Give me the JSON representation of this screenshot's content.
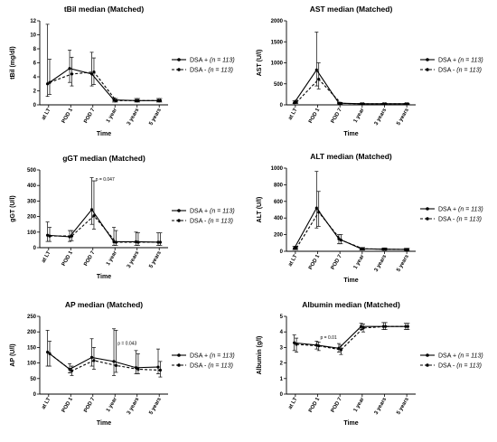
{
  "legend": {
    "pos": {
      "label": "DSA +",
      "n": "(n = 113)"
    },
    "neg": {
      "label": "DSA  -",
      "n": "(n = 113)"
    }
  },
  "chart_data": [
    {
      "type": "line",
      "title": "tBil median (Matched)",
      "ylabel": "tBil  (mg/dl)",
      "xlabel": "Time",
      "categories": [
        "at LT",
        "POD 1",
        "POD 7",
        "1 year",
        "3 years",
        "5 years"
      ],
      "ylim": [
        0,
        12
      ],
      "yticks": [
        0,
        2,
        4,
        6,
        8,
        10,
        12
      ],
      "series": [
        {
          "name": "DSA +",
          "style": "solid",
          "values": [
            3.0,
            5.2,
            4.4,
            0.7,
            0.6,
            0.6
          ],
          "err_low": [
            1.2,
            3.2,
            2.7,
            0.4,
            0.4,
            0.4
          ],
          "err_high": [
            11.5,
            7.8,
            7.5,
            1.0,
            0.9,
            0.9
          ]
        },
        {
          "name": "DSA -",
          "style": "dashed",
          "values": [
            3.2,
            4.4,
            4.7,
            0.6,
            0.6,
            0.6
          ],
          "err_low": [
            1.5,
            2.7,
            2.9,
            0.4,
            0.4,
            0.4
          ],
          "err_high": [
            6.5,
            6.8,
            6.7,
            0.9,
            0.9,
            0.9
          ]
        }
      ],
      "annotations": []
    },
    {
      "type": "line",
      "title": "AST median (Matched)",
      "ylabel": "AST (U/l)",
      "xlabel": "Time",
      "categories": [
        "at LT",
        "POD 1",
        "POD 7",
        "1 year",
        "3 years",
        "5 years"
      ],
      "ylim": [
        0,
        2000
      ],
      "yticks": [
        0,
        500,
        1000,
        1500,
        2000
      ],
      "series": [
        {
          "name": "DSA +",
          "style": "solid",
          "values": [
            50,
            830,
            40,
            25,
            25,
            25
          ],
          "err_low": [
            30,
            450,
            25,
            18,
            18,
            18
          ],
          "err_high": [
            100,
            1730,
            60,
            35,
            35,
            35
          ]
        },
        {
          "name": "DSA -",
          "style": "dashed",
          "values": [
            60,
            610,
            35,
            25,
            25,
            25
          ],
          "err_low": [
            35,
            380,
            22,
            18,
            18,
            18
          ],
          "err_high": [
            110,
            1000,
            55,
            35,
            35,
            35
          ]
        }
      ],
      "annotations": []
    },
    {
      "type": "line",
      "title": "gGT median (Matched)",
      "ylabel": "gGT (U/l)",
      "xlabel": "Time",
      "categories": [
        "at LT",
        "POD 1",
        "POD 7",
        "1 year",
        "3 years",
        "5 years"
      ],
      "ylim": [
        0,
        500
      ],
      "yticks": [
        0,
        100,
        200,
        300,
        400,
        500
      ],
      "series": [
        {
          "name": "DSA +",
          "style": "solid",
          "values": [
            80,
            70,
            245,
            38,
            38,
            35
          ],
          "err_low": [
            40,
            40,
            150,
            15,
            15,
            15
          ],
          "err_high": [
            165,
            110,
            450,
            130,
            100,
            95
          ]
        },
        {
          "name": "DSA -",
          "style": "dashed",
          "values": [
            75,
            75,
            205,
            35,
            35,
            35
          ],
          "err_low": [
            40,
            45,
            120,
            15,
            15,
            15
          ],
          "err_high": [
            130,
            110,
            430,
            110,
            95,
            95
          ]
        }
      ],
      "annotations": [
        {
          "text": "p = 0.047",
          "x": "POD 7",
          "y": 430
        }
      ]
    },
    {
      "type": "line",
      "title": "ALT median (Matched)",
      "ylabel": "ALT (U/l)",
      "xlabel": "Time",
      "categories": [
        "at LT",
        "POD 1",
        "POD 7",
        "1 year",
        "3 years",
        "5 years"
      ],
      "ylim": [
        0,
        1000
      ],
      "yticks": [
        0,
        200,
        400,
        600,
        800,
        1000
      ],
      "series": [
        {
          "name": "DSA +",
          "style": "solid",
          "values": [
            35,
            520,
            150,
            30,
            25,
            22
          ],
          "err_low": [
            20,
            280,
            90,
            15,
            15,
            12
          ],
          "err_high": [
            60,
            960,
            200,
            45,
            40,
            35
          ]
        },
        {
          "name": "DSA -",
          "style": "dashed",
          "values": [
            40,
            470,
            135,
            30,
            25,
            22
          ],
          "err_low": [
            20,
            300,
            90,
            15,
            15,
            12
          ],
          "err_high": [
            60,
            720,
            200,
            45,
            40,
            35
          ]
        }
      ],
      "annotations": []
    },
    {
      "type": "line",
      "title": "AP median (Matched)",
      "ylabel": "AP (U/l)",
      "xlabel": "Time",
      "categories": [
        "at LT",
        "POD 1",
        "POD 7",
        "1 year",
        "3 years",
        "5 years"
      ],
      "ylim": [
        0,
        250
      ],
      "yticks": [
        0,
        50,
        100,
        150,
        200,
        250
      ],
      "series": [
        {
          "name": "DSA +",
          "style": "solid",
          "values": [
            135,
            80,
            118,
            105,
            85,
            87
          ],
          "err_low": [
            90,
            68,
            90,
            60,
            65,
            65
          ],
          "err_high": [
            205,
            98,
            178,
            210,
            140,
            145
          ]
        },
        {
          "name": "DSA -",
          "style": "dashed",
          "values": [
            130,
            75,
            108,
            92,
            80,
            77
          ],
          "err_low": [
            90,
            60,
            80,
            70,
            65,
            55
          ],
          "err_high": [
            170,
            90,
            150,
            205,
            130,
            105
          ]
        }
      ],
      "annotations": [
        {
          "text": "p = 0.043",
          "x": "1 year",
          "y": 158
        }
      ]
    },
    {
      "type": "line",
      "title": "Albumin median (Matched)",
      "ylabel": "Albumin (g/l)",
      "xlabel": "Time",
      "categories": [
        "at LT",
        "POD 1",
        "POD 7",
        "1 year",
        "3 years",
        "5 years"
      ],
      "ylim": [
        0,
        5
      ],
      "yticks": [
        0,
        1,
        2,
        3,
        4,
        5
      ],
      "series": [
        {
          "name": "DSA +",
          "style": "solid",
          "values": [
            3.3,
            3.15,
            2.95,
            4.35,
            4.35,
            4.35
          ],
          "err_low": [
            2.8,
            2.9,
            2.7,
            4.15,
            4.15,
            4.15
          ],
          "err_high": [
            3.8,
            3.4,
            3.25,
            4.55,
            4.6,
            4.55
          ]
        },
        {
          "name": "DSA -",
          "style": "dashed",
          "values": [
            3.2,
            3.1,
            2.85,
            4.25,
            4.35,
            4.35
          ],
          "err_low": [
            2.7,
            2.8,
            2.55,
            4.0,
            4.15,
            4.15
          ],
          "err_high": [
            3.6,
            3.35,
            3.15,
            4.5,
            4.6,
            4.55
          ]
        }
      ],
      "annotations": [
        {
          "text": "p = 0.01",
          "x": "POD 1",
          "y": 3.55
        }
      ]
    }
  ]
}
